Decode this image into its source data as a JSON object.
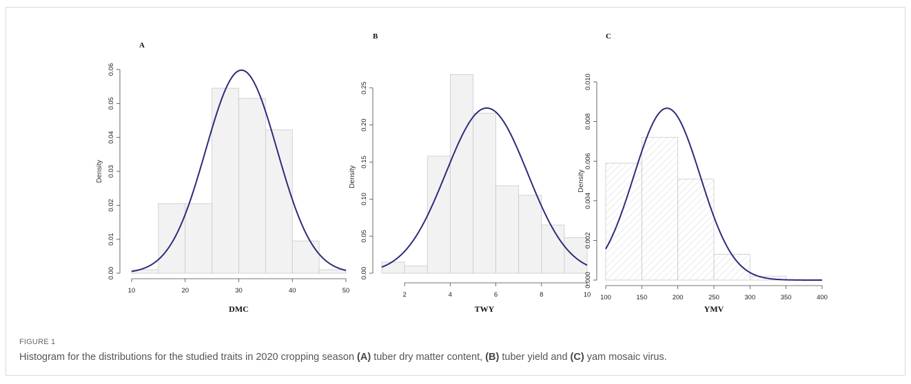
{
  "caption": {
    "label": "FIGURE 1",
    "text_intro": "Histogram for the distributions for the studied traits in 2020 cropping season",
    "parts": [
      {
        "tag": "(A)",
        "text": "tuber dry matter content,"
      },
      {
        "tag": "(B)",
        "text": "tuber yield and"
      },
      {
        "tag": "(C)",
        "text": "yam mosaic virus."
      }
    ]
  },
  "chart_data": [
    {
      "type": "bar",
      "panel": "A",
      "xlabel": "DMC",
      "ylabel": "Density",
      "xlim": [
        10,
        50
      ],
      "ylim": [
        0,
        0.06
      ],
      "x_ticks": [
        "10",
        "20",
        "30",
        "40",
        "50"
      ],
      "y_ticks": [
        "0.00",
        "0.01",
        "0.02",
        "0.03",
        "0.04",
        "0.05",
        "0.06"
      ],
      "bins": [
        [
          10,
          15
        ],
        [
          15,
          20
        ],
        [
          20,
          25
        ],
        [
          25,
          30
        ],
        [
          30,
          35
        ],
        [
          35,
          40
        ],
        [
          40,
          45
        ],
        [
          45,
          50
        ]
      ],
      "values": [
        0.001,
        0.0205,
        0.0205,
        0.0545,
        0.0515,
        0.0422,
        0.0095,
        0.001
      ],
      "curve": {
        "type": "normal",
        "mean": 30.5,
        "sd": 6.67
      },
      "fill": "#f2f2f2",
      "hatched": false,
      "curve_color": "#2b2b7a"
    },
    {
      "type": "bar",
      "panel": "B",
      "xlabel": "TWY",
      "ylabel": "Density",
      "xlim": [
        1,
        10
      ],
      "ylim": [
        0,
        0.26
      ],
      "x_ticks": [
        "2",
        "4",
        "6",
        "8",
        "10"
      ],
      "y_ticks": [
        "0.00",
        "0.05",
        "0.10",
        "0.15",
        "0.20",
        "0.25"
      ],
      "bins": [
        [
          1,
          2
        ],
        [
          2,
          3
        ],
        [
          3,
          4
        ],
        [
          4,
          5
        ],
        [
          5,
          6
        ],
        [
          6,
          7
        ],
        [
          7,
          8
        ],
        [
          8,
          9
        ],
        [
          9,
          10
        ]
      ],
      "values": [
        0.015,
        0.01,
        0.158,
        0.268,
        0.216,
        0.118,
        0.105,
        0.065,
        0.048
      ],
      "curve": {
        "type": "normal",
        "mean": 5.6,
        "sd": 1.79
      },
      "fill": "#f2f2f2",
      "hatched": false,
      "curve_color": "#2b2b7a"
    },
    {
      "type": "bar",
      "panel": "C",
      "xlabel": "YMV",
      "ylabel": "Density",
      "xlim": [
        100,
        400
      ],
      "ylim": [
        0,
        0.01
      ],
      "x_ticks": [
        "100",
        "150",
        "200",
        "250",
        "300",
        "350",
        "400"
      ],
      "y_ticks": [
        "0.000",
        "0.002",
        "0.004",
        "0.006",
        "0.008",
        "0.010"
      ],
      "bins": [
        [
          100,
          150
        ],
        [
          150,
          200
        ],
        [
          200,
          250
        ],
        [
          250,
          300
        ],
        [
          300,
          350
        ]
      ],
      "values": [
        0.0059,
        0.0072,
        0.0051,
        0.0013,
        0.0002
      ],
      "curve": {
        "type": "normal",
        "mean": 185,
        "sd": 46
      },
      "fill": "#ffffff",
      "hatched": true,
      "curve_color": "#2b2b7a"
    }
  ]
}
